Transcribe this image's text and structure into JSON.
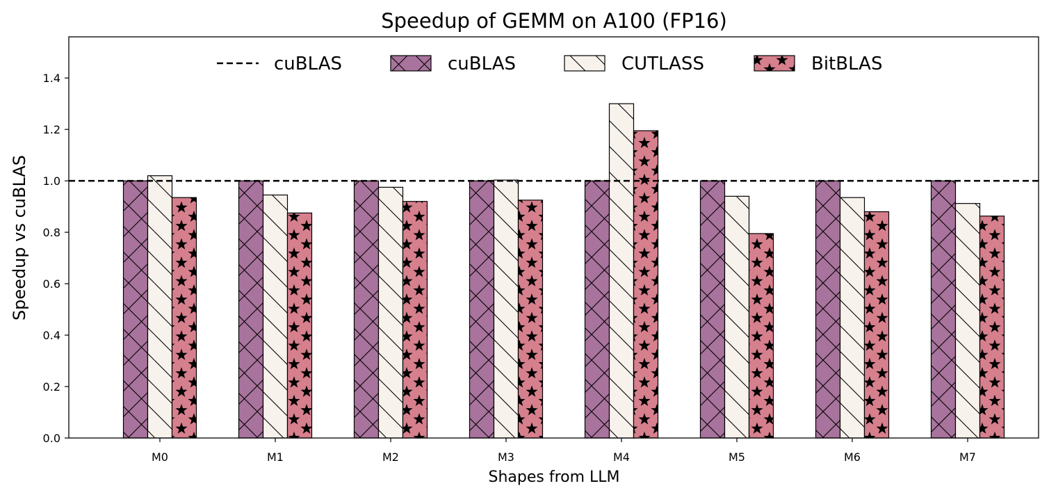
{
  "chart_data": {
    "type": "bar",
    "title": "Speedup of GEMM on A100 (FP16)",
    "xlabel": "Shapes from LLM",
    "ylabel": "Speedup vs cuBLAS",
    "categories": [
      "M0",
      "M1",
      "M2",
      "M3",
      "M4",
      "M5",
      "M6",
      "M7"
    ],
    "ylim": [
      0,
      1.56
    ],
    "yticks": [
      "0.0",
      "0.2",
      "0.4",
      "0.6",
      "0.8",
      "1.0",
      "1.2",
      "1.4"
    ],
    "grid": false,
    "legend_position": "top-center",
    "baseline": {
      "name": "cuBLAS",
      "value": 1.0,
      "style": "dashed",
      "color": "#000000"
    },
    "series": [
      {
        "name": "cuBLAS",
        "color": "#a8739c",
        "hatch": "cross",
        "values": [
          1.0,
          1.0,
          1.0,
          1.0,
          1.0,
          1.0,
          1.0,
          1.0
        ]
      },
      {
        "name": "CUTLASS",
        "color": "#f7f2ec",
        "hatch": "backslash",
        "values": [
          1.02,
          0.945,
          0.975,
          1.003,
          1.3,
          0.94,
          0.935,
          0.912
        ]
      },
      {
        "name": "BitBLAS",
        "color": "#d67f8d",
        "hatch": "star",
        "values": [
          0.935,
          0.875,
          0.92,
          0.925,
          1.195,
          0.795,
          0.88,
          0.863
        ]
      }
    ]
  }
}
